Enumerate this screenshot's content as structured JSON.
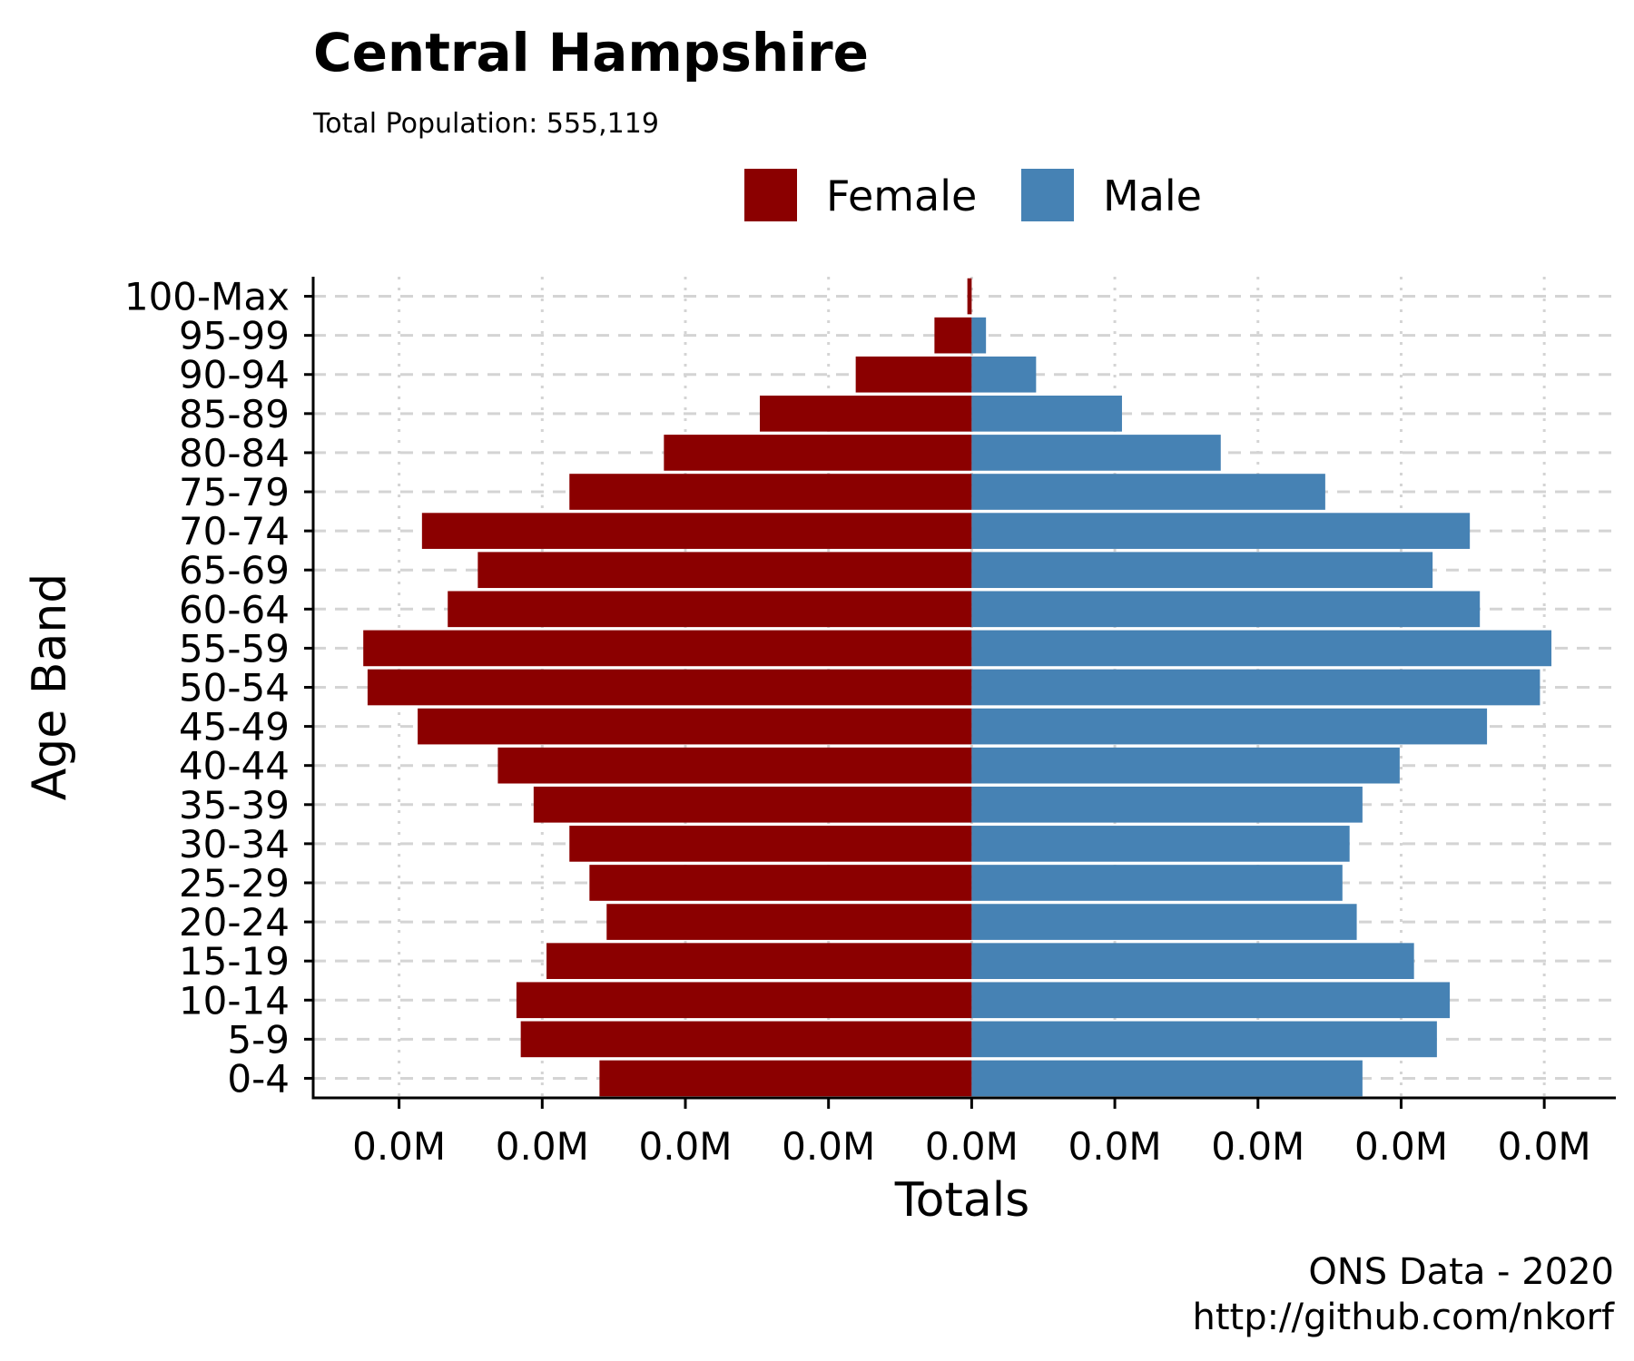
{
  "chart_data": {
    "type": "bar",
    "orientation": "horizontal-population-pyramid",
    "title": "Central Hampshire",
    "subtitle": "Total Population:  555,119",
    "xlabel": "Totals",
    "ylabel": "Age Band",
    "caption_lines": [
      "ONS Data - 2020",
      "http://github.com/nkorf"
    ],
    "categories": [
      "0-4",
      "5-9",
      "10-14",
      "15-19",
      "20-24",
      "25-29",
      "30-34",
      "35-39",
      "40-44",
      "45-49",
      "50-54",
      "55-59",
      "60-64",
      "65-69",
      "70-74",
      "75-79",
      "80-84",
      "85-89",
      "90-94",
      "95-99",
      "100-Max"
    ],
    "series": [
      {
        "name": "Female",
        "color": "#8b0000",
        "values": [
          -13000,
          -15750,
          -15900,
          -14850,
          -12750,
          -13350,
          -14050,
          -15300,
          -16550,
          -19350,
          -21100,
          -21250,
          -18300,
          -17250,
          -19200,
          -14050,
          -10750,
          -7400,
          -4050,
          -1300,
          -150
        ]
      },
      {
        "name": "Male",
        "color": "#4682b4",
        "values": [
          13650,
          16250,
          16700,
          15450,
          13450,
          12950,
          13200,
          13650,
          14950,
          18000,
          19850,
          20250,
          17750,
          16100,
          17400,
          12350,
          8700,
          5250,
          2250,
          500,
          0
        ]
      }
    ],
    "xlim": [
      -23000,
      22500
    ],
    "x_ticks": [
      -20000,
      -15000,
      -10000,
      -5000,
      0,
      5000,
      10000,
      15000,
      20000
    ],
    "x_tick_labels": [
      "0.0M",
      "0.0M",
      "0.0M",
      "0.0M",
      "0.0M",
      "0.0M",
      "0.0M",
      "0.0M",
      "0.0M"
    ],
    "legend_position": "top",
    "grid": true
  }
}
